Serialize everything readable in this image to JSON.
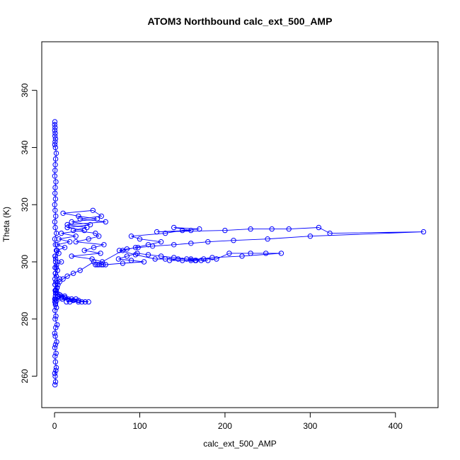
{
  "chart_data": {
    "type": "line",
    "title": "ATOM3 Northbound calc_ext_500_AMP",
    "xlabel": "calc_ext_500_AMP",
    "ylabel": "Theta (K)",
    "xlim": [
      -15,
      450
    ],
    "ylim": [
      249,
      377
    ],
    "xticks": [
      0,
      100,
      200,
      300,
      400
    ],
    "yticks": [
      260,
      280,
      300,
      320,
      340,
      360
    ],
    "grid": false,
    "legend": null,
    "marker": "open-circle",
    "color": "#0000ff",
    "series": [
      {
        "x": [
          0.5,
          1.2,
          0.8,
          1.5,
          0.3,
          2.0,
          1.0,
          0.6,
          1.8,
          0.4,
          1.1,
          2.5,
          0.9,
          0.2,
          1.4,
          3.0,
          0.7,
          1.6,
          0.5,
          2.2,
          1.0,
          0.3,
          4.0,
          1.2,
          0.8,
          2.8,
          0.5,
          1.5,
          6.0,
          2.0,
          1.0,
          3.5,
          0.6,
          2.4,
          8.0,
          1.3,
          0.9,
          5.0,
          2.1,
          12.0,
          3.0,
          18.0,
          5.0,
          25.0,
          8.0,
          35.0,
          15.0,
          42.0,
          20.0,
          50.0,
          28.0,
          10.0,
          45.0,
          55.0,
          30.0,
          60.0,
          15.0,
          38.0,
          22.0,
          48.0,
          52.0,
          40.0,
          25.0,
          58.0,
          46.0,
          35.0,
          54.0,
          20.0,
          44.0,
          56.0,
          80.0,
          95.0,
          110.0,
          125.0,
          100.0,
          90.0,
          130.0,
          150.0,
          170.0,
          140.0,
          160.0,
          120.0,
          200.0,
          230.0,
          255.0,
          275.0,
          310.0,
          323.0,
          433.0,
          300.0,
          250.0,
          210.0,
          180.0,
          160.0,
          140.0,
          115.0,
          98.0,
          85.0,
          76.0,
          95.0,
          118.0,
          130.0,
          145.0,
          160.0,
          175.0,
          190.0,
          205.0,
          230.0,
          248.0,
          266.0,
          220.0,
          185.0,
          160.0,
          135.0,
          150.0,
          166.0,
          172.0,
          180.0,
          165.0,
          155.0,
          140.0,
          125.0,
          110.0,
          97.0,
          85.0,
          75.0,
          90.0,
          105.0,
          80.0,
          60.0,
          48.0,
          50.0,
          52.0,
          55.0,
          57.0,
          46.0,
          30.0,
          22.0,
          15.0,
          10.0,
          6.0,
          4.0,
          3.0,
          2.0,
          1.5,
          1.0,
          0.8,
          0.5,
          1.2,
          0.6,
          2.5,
          1.8,
          8.0,
          4.0,
          12.0,
          6.0,
          20.0,
          9.0,
          28.0,
          14.0,
          36.0,
          18.0,
          25.0,
          32.0,
          40.0,
          16.0,
          22.0,
          12.0,
          28.0,
          8.0,
          3.0,
          1.5,
          0.8,
          0.5,
          1.0,
          2.0,
          1.2,
          0.6,
          3.0,
          1.0,
          0.4,
          2.2,
          0.9,
          0.3,
          1.4,
          0.7,
          0.2,
          1.1,
          0.5,
          0.8,
          1.6,
          0.3,
          0.6,
          0.9,
          1.3,
          2.0,
          1.0,
          0.4,
          0.7,
          1.1,
          0.5,
          0.8,
          0.3,
          0.6,
          0.2,
          0.4
        ],
        "y": [
          257,
          258,
          260,
          262,
          261,
          263,
          265,
          267,
          268,
          270,
          271,
          272,
          274,
          275,
          277,
          278,
          280,
          281,
          283,
          284,
          285,
          287,
          288,
          289,
          290,
          291,
          292,
          293,
          294,
          295,
          296,
          297,
          298,
          299,
          300,
          301,
          302,
          303,
          304,
          305,
          306,
          307,
          308,
          309,
          310,
          311,
          312,
          313,
          314,
          315,
          316,
          317,
          318,
          316,
          315,
          314,
          313,
          312,
          311,
          310,
          309,
          308,
          307,
          306,
          305,
          304,
          303,
          302,
          301,
          300,
          304,
          305,
          306,
          307,
          308,
          309,
          310,
          311,
          311.5,
          312,
          311,
          310.5,
          311,
          311.5,
          311.5,
          311.5,
          312,
          310,
          310.5,
          309,
          308,
          307.5,
          307,
          306.5,
          306,
          305.5,
          305,
          304.5,
          304,
          302.5,
          301,
          301,
          301,
          301,
          301,
          301,
          303,
          303,
          303,
          303,
          302,
          301.5,
          300.5,
          300.5,
          300.5,
          300.5,
          300.5,
          300.5,
          300.5,
          301,
          301.5,
          302,
          302.5,
          303,
          302,
          301,
          300.5,
          300,
          299.5,
          299,
          299,
          299,
          299,
          299,
          299,
          300,
          297,
          296,
          295,
          294,
          293,
          292,
          291,
          290,
          289,
          288,
          287,
          286,
          285.5,
          286,
          286.5,
          287,
          287.5,
          288,
          288,
          288.5,
          287,
          287,
          286,
          286,
          286,
          286,
          287,
          286,
          286,
          287,
          286.5,
          287.5,
          286.5,
          288,
          289,
          290,
          292,
          294,
          296,
          298,
          300,
          302,
          304,
          306,
          308,
          310,
          312,
          314,
          316,
          318,
          320,
          322,
          324,
          326,
          328,
          330,
          332,
          334,
          336,
          338,
          340,
          341,
          342,
          343,
          344,
          345,
          346,
          347,
          348,
          349
        ]
      }
    ]
  }
}
